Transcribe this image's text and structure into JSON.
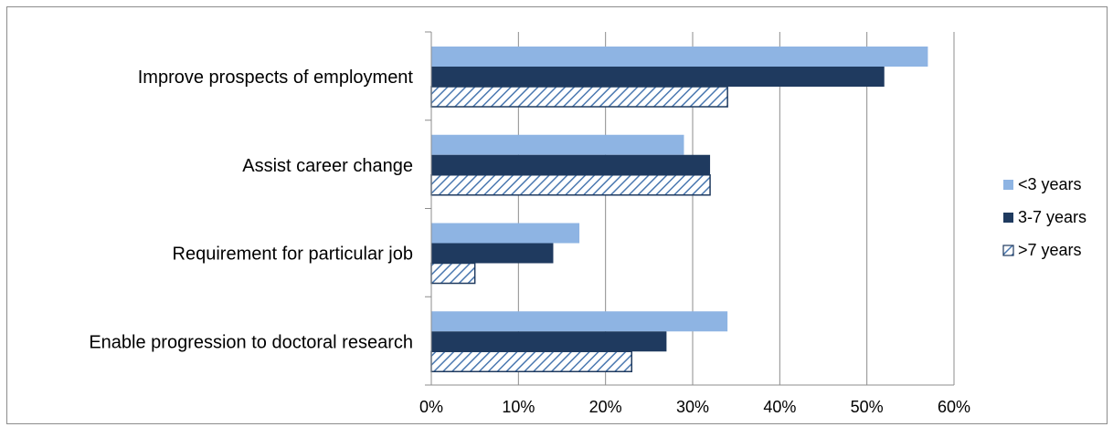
{
  "chart_data": {
    "type": "bar",
    "orientation": "horizontal",
    "categories": [
      "Improve prospects of employment",
      "Assist career change",
      "Requirement for particular job",
      "Enable progression to doctoral research"
    ],
    "series": [
      {
        "name": "<3 years",
        "values": [
          57,
          29,
          17,
          34
        ],
        "color": "#8eb4e3",
        "pattern": "solid"
      },
      {
        "name": "3-7 years",
        "values": [
          52,
          32,
          14,
          27
        ],
        "color": "#1f3a5f",
        "pattern": "solid"
      },
      {
        "name": ">7 years",
        "values": [
          34,
          32,
          5,
          23
        ],
        "color": "#4a78b0",
        "pattern": "hatched"
      }
    ],
    "xlim": [
      0,
      60
    ],
    "xticks": [
      "0%",
      "10%",
      "20%",
      "30%",
      "40%",
      "50%",
      "60%"
    ],
    "grid": true,
    "legend_position": "right"
  }
}
